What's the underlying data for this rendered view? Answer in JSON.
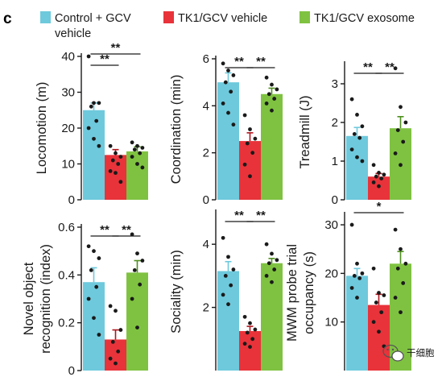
{
  "panel_letter": "c",
  "legend": [
    {
      "label": "Control + GCV",
      "label2": "vehicle",
      "color": "#6ec9dc"
    },
    {
      "label": "TK1/GCV vehicle",
      "color": "#e8333a"
    },
    {
      "label": "TK1/GCV exosome",
      "color": "#7fc241"
    }
  ],
  "watermark": {
    "text": "干细胞",
    "icon": "wechat-logo-icon"
  },
  "colors": {
    "control": "#6ec9dc",
    "vehicle": "#e8333a",
    "exosome": "#7fc241",
    "axis": "#1a1a1a"
  },
  "chart_data": [
    {
      "type": "bar",
      "id": "locomotion",
      "ylabel": "Locomotion (m)",
      "categories": [
        "Control + GCV vehicle",
        "TK1/GCV vehicle",
        "TK1/GCV exosome"
      ],
      "values": [
        25.0,
        12.5,
        13.5
      ],
      "errors": [
        2.0,
        1.5,
        1.3
      ],
      "ylim": [
        0,
        40
      ],
      "yticks": [
        "0",
        "10",
        "20",
        "30",
        "40"
      ],
      "points": [
        [
          40.0,
          27,
          27,
          26,
          22,
          20,
          17,
          15
        ],
        [
          15,
          13,
          12,
          11,
          10,
          8,
          7.5,
          5
        ],
        [
          16,
          15,
          14.5,
          14,
          13,
          12,
          10,
          9
        ]
      ],
      "significance": [
        {
          "from": 0,
          "to": 1,
          "label": "**"
        },
        {
          "from": 0,
          "to": 2,
          "label": "**"
        }
      ]
    },
    {
      "type": "bar",
      "id": "coordination",
      "ylabel": "Coordination (min)",
      "categories": [
        "Control + GCV vehicle",
        "TK1/GCV vehicle",
        "TK1/GCV exosome"
      ],
      "values": [
        5.0,
        2.5,
        4.5
      ],
      "errors": [
        0.4,
        0.35,
        0.25
      ],
      "ylim": [
        0,
        6
      ],
      "yticks": [
        "0",
        "2",
        "4",
        "6"
      ],
      "points": [
        [
          5.8,
          5.5,
          5.3,
          5.0,
          4.6,
          4.1,
          3.7,
          3.2
        ],
        [
          3.6,
          3.0,
          2.6,
          2.4,
          2.0,
          1.5,
          1.0
        ],
        [
          5.2,
          4.9,
          4.7,
          4.5,
          4.3,
          4.1,
          3.8
        ]
      ],
      "significance": [
        {
          "from": 0,
          "to": 1,
          "label": "**"
        },
        {
          "from": 1,
          "to": 2,
          "label": "**"
        }
      ]
    },
    {
      "type": "bar",
      "id": "treadmill",
      "ylabel": "Treadmill (J)",
      "categories": [
        "Control + GCV vehicle",
        "TK1/GCV vehicle",
        "TK1/GCV exosome"
      ],
      "values": [
        1.65,
        0.6,
        1.85
      ],
      "errors": [
        0.22,
        0.08,
        0.3
      ],
      "ylim": [
        0,
        3.5
      ],
      "yticks": [
        "0",
        "1",
        "2",
        "3"
      ],
      "points": [
        [
          2.6,
          2.2,
          1.9,
          1.7,
          1.6,
          1.3,
          1.1,
          1.0
        ],
        [
          0.9,
          0.7,
          0.65,
          0.6,
          0.55,
          0.45,
          0.35
        ],
        [
          3.4,
          2.4,
          2.0,
          1.8,
          1.5,
          1.2,
          0.9
        ]
      ],
      "significance": [
        {
          "from": 0,
          "to": 1,
          "label": "**"
        },
        {
          "from": 1,
          "to": 2,
          "label": "**"
        }
      ]
    },
    {
      "type": "bar",
      "id": "novel-object",
      "ylabel": "Novel object",
      "ylabel2": "recognition (index)",
      "categories": [
        "Control + GCV vehicle",
        "TK1/GCV vehicle",
        "TK1/GCV exosome"
      ],
      "values": [
        0.37,
        0.13,
        0.41
      ],
      "errors": [
        0.06,
        0.04,
        0.05
      ],
      "ylim": [
        0,
        0.6
      ],
      "yticks": [
        "0",
        "0.2",
        "0.4",
        "0.6"
      ],
      "points": [
        [
          0.52,
          0.5,
          0.47,
          0.42,
          0.35,
          0.3,
          0.22,
          0.15
        ],
        [
          0.27,
          0.25,
          0.17,
          0.12,
          0.08,
          0.05,
          0.03
        ],
        [
          0.57,
          0.49,
          0.46,
          0.42,
          0.36,
          0.3,
          0.18
        ]
      ],
      "significance": [
        {
          "from": 0,
          "to": 1,
          "label": "**"
        },
        {
          "from": 1,
          "to": 2,
          "label": "**"
        }
      ]
    },
    {
      "type": "bar",
      "id": "sociality",
      "ylabel": "Sociality (min)",
      "categories": [
        "Control + GCV vehicle",
        "TK1/GCV vehicle",
        "TK1/GCV exosome"
      ],
      "values": [
        3.15,
        1.25,
        3.4
      ],
      "errors": [
        0.3,
        0.15,
        0.15
      ],
      "ylim": [
        0,
        5
      ],
      "yticks": [
        "2",
        "4"
      ],
      "points": [
        [
          4.2,
          3.6,
          3.2,
          3.0,
          2.7,
          2.4,
          2.1
        ],
        [
          1.7,
          1.5,
          1.3,
          1.2,
          1.0,
          0.85,
          0.75
        ],
        [
          4.0,
          3.7,
          3.5,
          3.4,
          3.2,
          3.0,
          2.8
        ]
      ],
      "significance": [
        {
          "from": 0,
          "to": 1,
          "label": "**"
        },
        {
          "from": 1,
          "to": 2,
          "label": "**"
        }
      ]
    },
    {
      "type": "bar",
      "id": "mwm",
      "ylabel": "MWM probe trial",
      "ylabel2": "occupancy (s)",
      "categories": [
        "Control + GCV vehicle",
        "TK1/GCV vehicle",
        "TK1/GCV exosome"
      ],
      "values": [
        19.5,
        13.5,
        22.0
      ],
      "errors": [
        1.5,
        2.2,
        2.5
      ],
      "ylim": [
        0,
        32
      ],
      "yticks": [
        "10",
        "20",
        "30"
      ],
      "points": [
        [
          30.0,
          22,
          20,
          19.5,
          19,
          17,
          15
        ],
        [
          21,
          16,
          15.5,
          14,
          12,
          10,
          8,
          5
        ],
        [
          29,
          25,
          22,
          21,
          18,
          15,
          12
        ]
      ],
      "significance": [
        {
          "from": 0,
          "to": 2,
          "label": "*"
        }
      ]
    }
  ]
}
